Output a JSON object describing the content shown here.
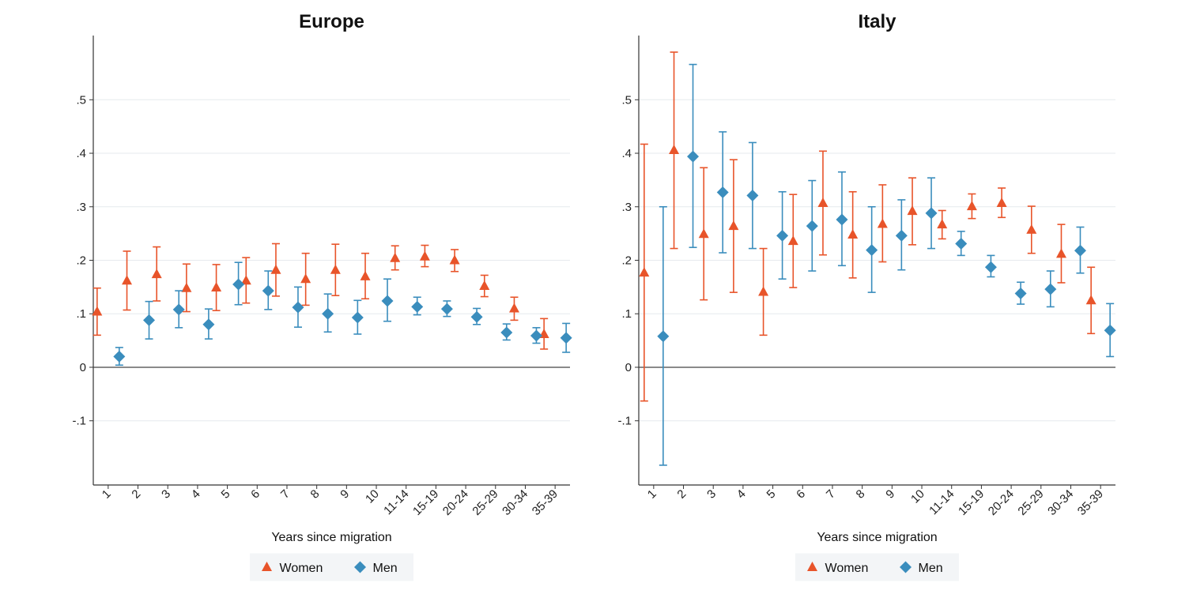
{
  "chart_data": [
    {
      "type": "scatter",
      "title": "Europe",
      "xlabel": "Years since migration",
      "ylabel": "",
      "ylim": [
        -0.22,
        0.62
      ],
      "yticks": [
        -0.1,
        0,
        0.1,
        0.2,
        0.3,
        0.4,
        0.5
      ],
      "ytick_labels": [
        "-.1",
        "0",
        ".1",
        ".2",
        ".3",
        ".4",
        ".5"
      ],
      "grid": true,
      "reference_line": 0,
      "legend_position": "bottom",
      "categories": [
        "1",
        "2",
        "3",
        "4",
        "5",
        "6",
        "7",
        "8",
        "9",
        "10",
        "11-14",
        "15-19",
        "20-24",
        "25-29",
        "30-34",
        "35-39"
      ],
      "series": [
        {
          "name": "Women",
          "marker": "triangle",
          "color": "#e8542a",
          "values": [
            0.104,
            0.162,
            0.174,
            0.148,
            0.149,
            0.162,
            0.182,
            0.165,
            0.182,
            0.17,
            0.204,
            0.207,
            0.2,
            0.152,
            0.11,
            0.062
          ],
          "lower": [
            0.06,
            0.107,
            0.124,
            0.104,
            0.106,
            0.12,
            0.133,
            0.116,
            0.134,
            0.128,
            0.182,
            0.188,
            0.179,
            0.132,
            0.088,
            0.034
          ],
          "upper": [
            0.148,
            0.217,
            0.225,
            0.193,
            0.192,
            0.205,
            0.231,
            0.213,
            0.23,
            0.213,
            0.227,
            0.228,
            0.22,
            0.172,
            0.131,
            0.091
          ]
        },
        {
          "name": "Men",
          "marker": "diamond",
          "color": "#3a8dbd",
          "values": [
            0.02,
            0.088,
            0.108,
            0.08,
            0.155,
            0.143,
            0.112,
            0.1,
            0.093,
            0.124,
            0.113,
            0.109,
            0.094,
            0.065,
            0.059,
            0.055
          ],
          "lower": [
            0.004,
            0.053,
            0.074,
            0.053,
            0.117,
            0.108,
            0.075,
            0.066,
            0.062,
            0.086,
            0.098,
            0.095,
            0.08,
            0.051,
            0.045,
            0.028
          ],
          "upper": [
            0.037,
            0.123,
            0.143,
            0.109,
            0.196,
            0.18,
            0.15,
            0.137,
            0.125,
            0.165,
            0.131,
            0.124,
            0.11,
            0.081,
            0.074,
            0.082
          ]
        }
      ]
    },
    {
      "type": "scatter",
      "title": "Italy",
      "xlabel": "Years since migration",
      "ylabel": "",
      "ylim": [
        -0.22,
        0.62
      ],
      "yticks": [
        -0.1,
        0,
        0.1,
        0.2,
        0.3,
        0.4,
        0.5
      ],
      "ytick_labels": [
        "-.1",
        "0",
        ".1",
        ".2",
        ".3",
        ".4",
        ".5"
      ],
      "grid": true,
      "reference_line": 0,
      "legend_position": "bottom",
      "categories": [
        "1",
        "2",
        "3",
        "4",
        "5",
        "6",
        "7",
        "8",
        "9",
        "10",
        "11-14",
        "15-19",
        "20-24",
        "25-29",
        "30-34",
        "35-39"
      ],
      "series": [
        {
          "name": "Women",
          "marker": "triangle",
          "color": "#e8542a",
          "values": [
            0.177,
            0.406,
            0.249,
            0.264,
            0.141,
            0.236,
            0.307,
            0.248,
            0.268,
            0.292,
            0.267,
            0.301,
            0.307,
            0.257,
            0.212,
            0.125
          ],
          "lower": [
            -0.063,
            0.222,
            0.126,
            0.14,
            0.06,
            0.149,
            0.21,
            0.167,
            0.197,
            0.229,
            0.24,
            0.278,
            0.28,
            0.213,
            0.158,
            0.063
          ],
          "upper": [
            0.417,
            0.589,
            0.373,
            0.388,
            0.222,
            0.323,
            0.404,
            0.328,
            0.341,
            0.354,
            0.293,
            0.324,
            0.335,
            0.301,
            0.267,
            0.187
          ]
        },
        {
          "name": "Men",
          "marker": "diamond",
          "color": "#3a8dbd",
          "values": [
            0.058,
            0.394,
            0.327,
            0.321,
            0.246,
            0.264,
            0.276,
            0.219,
            0.246,
            0.288,
            0.231,
            0.187,
            0.138,
            0.146,
            0.218,
            0.069
          ],
          "lower": [
            -0.183,
            0.224,
            0.214,
            0.222,
            0.165,
            0.18,
            0.19,
            0.14,
            0.182,
            0.222,
            0.209,
            0.169,
            0.118,
            0.113,
            0.176,
            0.02
          ],
          "upper": [
            0.3,
            0.566,
            0.44,
            0.42,
            0.328,
            0.349,
            0.365,
            0.3,
            0.313,
            0.354,
            0.254,
            0.209,
            0.159,
            0.18,
            0.262,
            0.119
          ]
        }
      ]
    }
  ]
}
